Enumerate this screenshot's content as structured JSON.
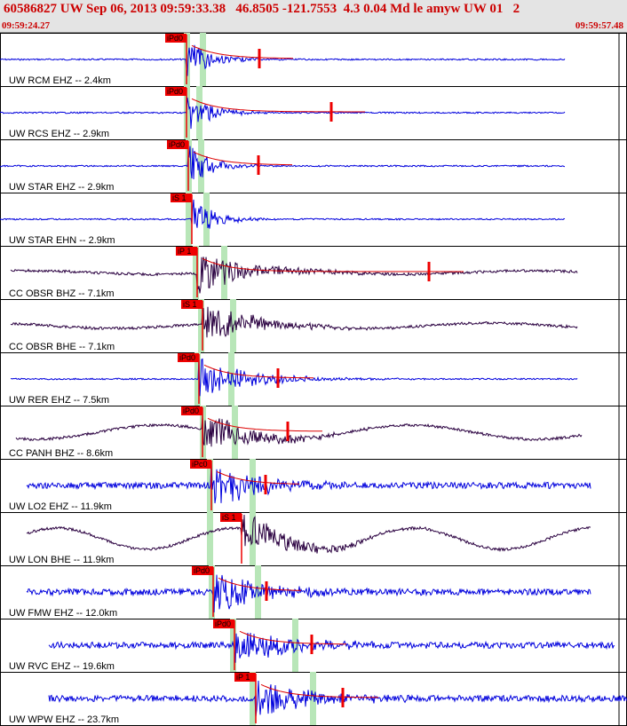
{
  "header": {
    "title": "60586827 UW Sep 06, 2013 09:59:33.38   46.8505 -121.7553  4.3 0.04 Md le amyw UW 01   2",
    "start_time": "09:59:24.27",
    "end_time": "09:59:57.48"
  },
  "colors": {
    "header_bg": "#e4e4e4",
    "header_text": "#cc0000",
    "trace_blue": "#0000dd",
    "trace_dark": "#2a0040",
    "pick_red": "#ee0000",
    "window_green": "#b8e6b8",
    "coda_red": "#dd0000"
  },
  "traces": [
    {
      "label": "UW RCM EHZ -- 2.4km",
      "pick": "iPd0",
      "color": "blue"
    },
    {
      "label": "UW RCS EHZ -- 2.9km",
      "pick": "iPd0",
      "color": "blue"
    },
    {
      "label": "UW STAR EHZ -- 2.9km",
      "pick": "iPd0",
      "color": "blue"
    },
    {
      "label": "UW STAR EHN -- 2.9km",
      "pick": "iS 1",
      "color": "blue"
    },
    {
      "label": "CC OBSR BHZ -- 7.1km",
      "pick": "iP 1",
      "color": "dark"
    },
    {
      "label": "CC OBSR BHE -- 7.1km",
      "pick": "iS 1",
      "color": "dark"
    },
    {
      "label": "UW RER EHZ -- 7.5km",
      "pick": "iPd0",
      "color": "blue"
    },
    {
      "label": "CC PANH BHZ -- 8.6km",
      "pick": "iPd0",
      "color": "dark"
    },
    {
      "label": "UW LO2 EHZ -- 11.9km",
      "pick": "iPc0",
      "color": "blue"
    },
    {
      "label": "UW LON BHE -- 11.9km",
      "pick": "iS 1",
      "color": "dark"
    },
    {
      "label": "UW FMW EHZ -- 12.0km",
      "pick": "iPd0",
      "color": "blue"
    },
    {
      "label": "UW RVC EHZ -- 19.6km",
      "pick": "iPd0",
      "color": "blue"
    },
    {
      "label": "UW WPW EHZ -- 23.7km",
      "pick": "iP 1",
      "color": "blue"
    }
  ]
}
